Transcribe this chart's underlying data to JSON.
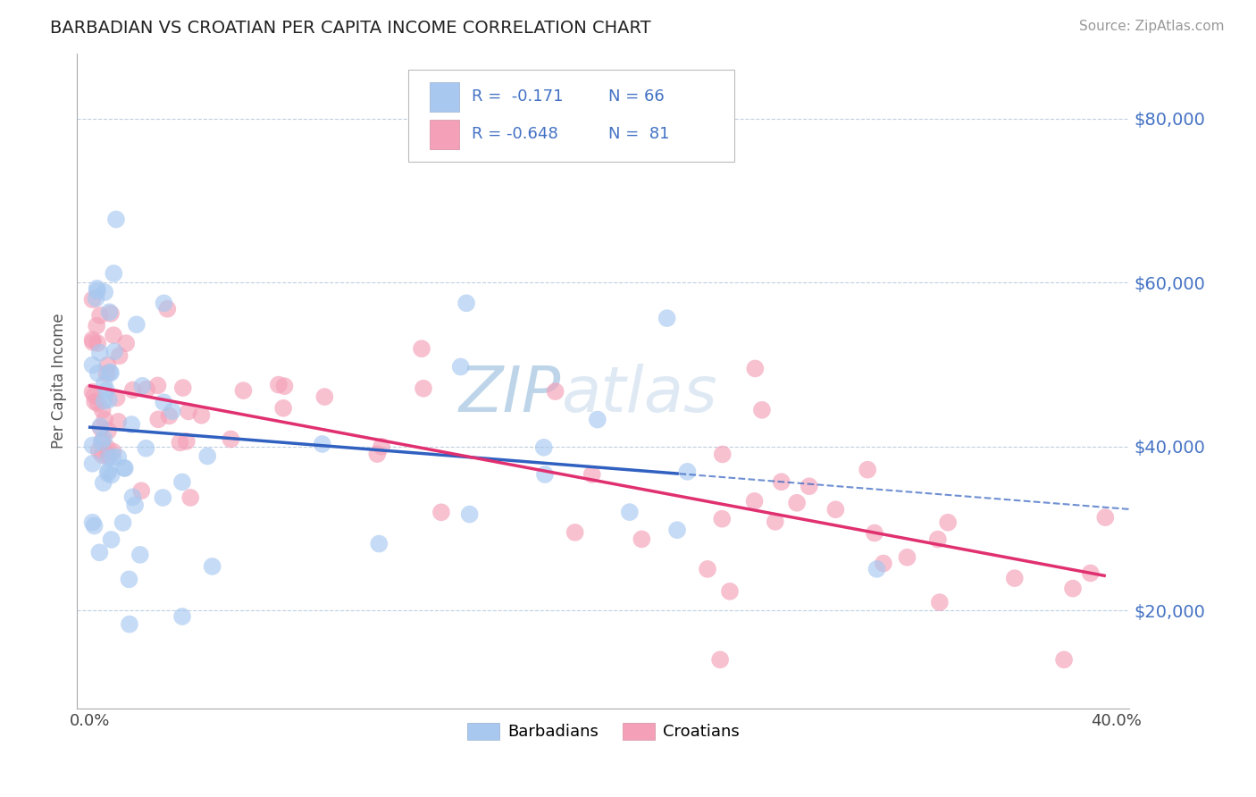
{
  "title": "BARBADIAN VS CROATIAN PER CAPITA INCOME CORRELATION CHART",
  "source": "Source: ZipAtlas.com",
  "ylabel": "Per Capita Income",
  "xlim": [
    -0.005,
    0.405
  ],
  "ylim": [
    8000,
    88000
  ],
  "yticks": [
    20000,
    40000,
    60000,
    80000
  ],
  "ytick_labels": [
    "$20,000",
    "$40,000",
    "$60,000",
    "$80,000"
  ],
  "xticks": [
    0.0,
    0.1,
    0.2,
    0.3,
    0.4
  ],
  "xtick_labels": [
    "0.0%",
    "",
    "",
    "",
    "40.0%"
  ],
  "barbadian_color": "#a8c8f0",
  "croatian_color": "#f4a0b8",
  "barbadian_line_color": "#3060c0",
  "croatian_line_color": "#e03070",
  "legend_label_barbadian": "Barbadians",
  "legend_label_croatian": "Croatians",
  "watermark_zip": "ZIP",
  "watermark_atlas": "atlas",
  "background_color": "#ffffff",
  "grid_color": "#c0d0e0",
  "title_fontsize": 14,
  "source_fontsize": 11
}
